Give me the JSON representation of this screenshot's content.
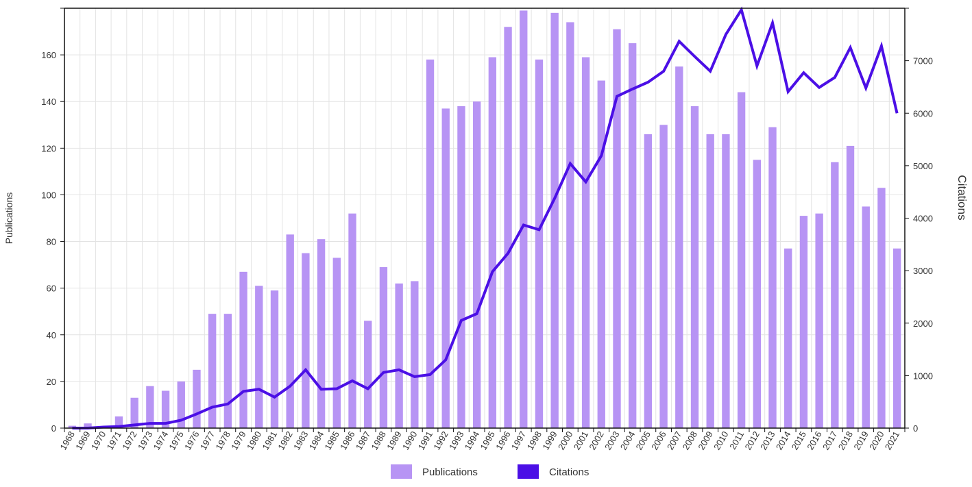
{
  "chart_data": {
    "type": "bar",
    "title": "",
    "xlabel": "",
    "ylabel": "Publications",
    "y2label": "Citations",
    "grid": true,
    "legend_position": "bottom",
    "ylim": [
      0,
      180
    ],
    "y2lim": [
      0,
      8000
    ],
    "y_ticks": [
      0,
      20,
      40,
      60,
      80,
      100,
      120,
      140,
      160
    ],
    "y2_ticks": [
      0,
      1000,
      2000,
      3000,
      4000,
      5000,
      6000,
      7000
    ],
    "colors": {
      "publications": "#b794f4",
      "citations": "#4b0fe6"
    },
    "categories": [
      "1968",
      "1969",
      "1970",
      "1971",
      "1972",
      "1973",
      "1974",
      "1975",
      "1976",
      "1977",
      "1978",
      "1979",
      "1980",
      "1981",
      "1982",
      "1983",
      "1984",
      "1985",
      "1986",
      "1987",
      "1988",
      "1989",
      "1990",
      "1991",
      "1992",
      "1993",
      "1994",
      "1995",
      "1996",
      "1997",
      "1998",
      "1999",
      "2000",
      "2001",
      "2002",
      "2003",
      "2004",
      "2005",
      "2006",
      "2007",
      "2008",
      "2009",
      "2010",
      "2011",
      "2012",
      "2013",
      "2014",
      "2015",
      "2016",
      "2017",
      "2018",
      "2019",
      "2020",
      "2021"
    ],
    "series": [
      {
        "name": "Publications",
        "type": "bar",
        "axis": "left",
        "values": [
          1,
          2,
          0,
          5,
          13,
          18,
          16,
          20,
          25,
          49,
          49,
          67,
          61,
          59,
          83,
          75,
          81,
          73,
          92,
          46,
          69,
          62,
          63,
          158,
          137,
          138,
          140,
          159,
          172,
          179,
          158,
          178,
          174,
          159,
          149,
          171,
          165,
          126,
          130,
          155,
          138,
          126,
          126,
          144,
          115,
          129,
          77,
          91,
          92,
          114,
          121,
          95,
          103,
          77
        ]
      },
      {
        "name": "Citations",
        "type": "line",
        "axis": "right",
        "values": [
          0,
          0,
          20,
          30,
          60,
          90,
          90,
          150,
          270,
          400,
          460,
          700,
          740,
          590,
          800,
          1110,
          740,
          750,
          900,
          750,
          1060,
          1110,
          980,
          1020,
          1300,
          2050,
          2180,
          2980,
          3330,
          3870,
          3780,
          4380,
          5040,
          4690,
          5190,
          6320,
          6460,
          6590,
          6800,
          7370,
          7080,
          6800,
          7500,
          7970,
          6900,
          7720,
          6410,
          6770,
          6490,
          6680,
          7250,
          6480,
          7280,
          6000
        ]
      }
    ]
  }
}
